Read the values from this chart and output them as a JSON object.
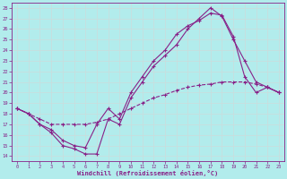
{
  "xlabel": "Windchill (Refroidissement éolien,°C)",
  "bg_color": "#b2ecec",
  "line_color": "#882288",
  "grid_color": "#c8dede",
  "xlim": [
    -0.5,
    23.5
  ],
  "ylim": [
    13.5,
    28.5
  ],
  "xticks": [
    0,
    1,
    2,
    3,
    4,
    5,
    6,
    7,
    8,
    9,
    10,
    11,
    12,
    13,
    14,
    15,
    16,
    17,
    18,
    19,
    20,
    21,
    22,
    23
  ],
  "yticks": [
    14,
    15,
    16,
    17,
    18,
    19,
    20,
    21,
    22,
    23,
    24,
    25,
    26,
    27,
    28
  ],
  "line1_x": [
    0,
    1,
    2,
    3,
    4,
    5,
    6,
    7,
    8,
    9,
    10,
    11,
    12,
    13,
    14,
    15,
    16,
    17,
    18,
    19,
    20,
    21,
    22,
    23
  ],
  "line1_y": [
    18.5,
    18.0,
    17.0,
    16.2,
    15.0,
    14.7,
    14.2,
    14.2,
    17.5,
    17.0,
    19.5,
    21.0,
    22.5,
    23.5,
    24.5,
    26.0,
    27.0,
    28.0,
    27.2,
    25.0,
    23.0,
    21.0,
    20.5,
    20.0
  ],
  "line2_x": [
    0,
    1,
    2,
    3,
    4,
    5,
    6,
    7,
    8,
    9,
    10,
    11,
    12,
    13,
    14,
    15,
    16,
    17,
    18,
    19,
    20,
    21,
    22,
    23
  ],
  "line2_y": [
    18.5,
    18.0,
    17.0,
    16.5,
    15.5,
    15.0,
    14.8,
    17.0,
    18.5,
    17.5,
    20.0,
    21.5,
    23.0,
    24.0,
    25.5,
    26.3,
    26.8,
    27.5,
    27.3,
    25.3,
    21.5,
    20.0,
    20.5,
    20.0
  ],
  "line3_x": [
    0,
    1,
    2,
    3,
    4,
    5,
    6,
    7,
    8,
    9,
    10,
    11,
    12,
    13,
    14,
    15,
    16,
    17,
    18,
    19,
    20,
    21,
    22,
    23
  ],
  "line3_y": [
    18.5,
    18.0,
    17.5,
    17.0,
    17.0,
    17.0,
    17.0,
    17.2,
    17.5,
    18.0,
    18.5,
    19.0,
    19.5,
    19.8,
    20.2,
    20.5,
    20.7,
    20.8,
    21.0,
    21.0,
    21.0,
    20.8,
    20.5,
    20.0
  ]
}
